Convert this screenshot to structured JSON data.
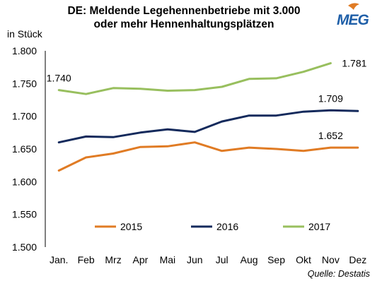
{
  "header": {
    "title_line1": "DE: Meldende Legehennenbetriebe mit 3.000",
    "title_line2": "oder mehr Hennenhaltungsplätzen",
    "logo_text": "MEG"
  },
  "chart_data": {
    "type": "line",
    "title": "DE: Meldende Legehennenbetriebe mit 3.000 oder mehr Hennenhaltungsplätzen",
    "ylabel": "in Stück",
    "xlabel": "",
    "source": "Quelle: Destatis",
    "categories": [
      "Jan.",
      "Feb",
      "Mrz",
      "Apr",
      "Mai",
      "Jun",
      "Jul",
      "Aug",
      "Sep",
      "Okt",
      "Nov",
      "Dez"
    ],
    "ylim": [
      1500,
      1800
    ],
    "yticks": [
      1500,
      1550,
      1600,
      1650,
      1700,
      1750,
      1800
    ],
    "ytick_labels": [
      "1.500",
      "1.550",
      "1.600",
      "1.650",
      "1.700",
      "1.750",
      "1.800"
    ],
    "grid": false,
    "legend_position": "bottom",
    "series": [
      {
        "name": "2015",
        "color": "#e07b24",
        "values": [
          1617,
          1637,
          1643,
          1653,
          1654,
          1660,
          1647,
          1652,
          1650,
          1647,
          1652,
          1652
        ],
        "label_text": "1.652",
        "label_index": 10
      },
      {
        "name": "2016",
        "color": "#142a5c",
        "values": [
          1660,
          1669,
          1668,
          1675,
          1680,
          1676,
          1692,
          1701,
          1701,
          1707,
          1709,
          1708
        ],
        "label_text": "1.709",
        "label_index": 10
      },
      {
        "name": "2017",
        "color": "#98bf5e",
        "values": [
          1740,
          1734,
          1743,
          1742,
          1739,
          1740,
          1745,
          1757,
          1758,
          1768,
          1781,
          null
        ],
        "label_text": "1.740",
        "label_index": 0,
        "end_label_text": "1.781",
        "end_label_index": 10
      }
    ]
  }
}
